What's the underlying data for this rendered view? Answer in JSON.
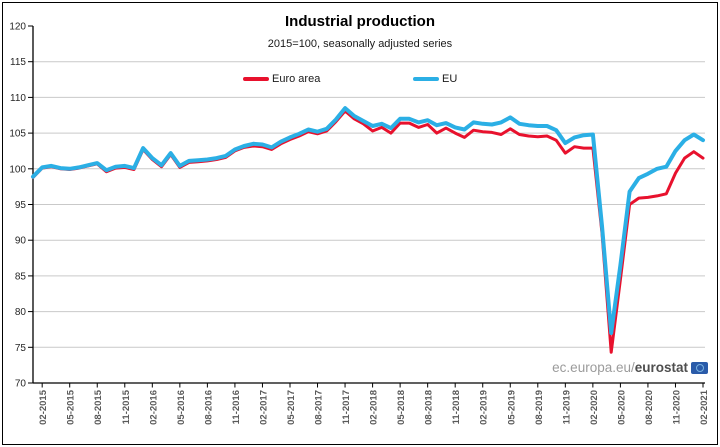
{
  "watermark": {
    "prefix": "ec.europa.eu/",
    "brand": "eurostat",
    "logo": "eu-flag-logo"
  },
  "chart_data": {
    "type": "line",
    "title": "Industrial production",
    "subtitle": "2015=100, seasonally adjusted series",
    "legend_position": "top-center",
    "grid": "horizontal",
    "ylim": [
      70,
      120
    ],
    "ytick_step": 5,
    "x_frequency": "monthly",
    "x_start": "01-2015",
    "x_end": "02-2021",
    "xtick_labels": [
      "02-2015",
      "05-2015",
      "08-2015",
      "11-2015",
      "02-2016",
      "05-2016",
      "08-2016",
      "11-2016",
      "02-2017",
      "05-2017",
      "08-2017",
      "11-2017",
      "02-2018",
      "05-2018",
      "08-2018",
      "11-2018",
      "02-2019",
      "05-2019",
      "08-2019",
      "11-2019",
      "02-2020",
      "05-2020",
      "08-2020",
      "11-2020",
      "02-2021"
    ],
    "axis_colors": {
      "grid": "#c9c9c9",
      "axis": "#000000",
      "xtick_text": "#595959",
      "ytick_text": "#262626"
    },
    "series": [
      {
        "name": "Euro area",
        "color": "#e8112d",
        "values": [
          98.8,
          100.1,
          100.3,
          100.0,
          99.9,
          100.1,
          100.4,
          100.7,
          99.6,
          100.1,
          100.2,
          99.9,
          102.7,
          101.3,
          100.3,
          102.0,
          100.2,
          100.9,
          101.0,
          101.1,
          101.3,
          101.6,
          102.5,
          103.0,
          103.2,
          103.1,
          102.7,
          103.5,
          104.1,
          104.6,
          105.2,
          104.9,
          105.3,
          106.6,
          108.1,
          107.0,
          106.3,
          105.3,
          105.8,
          105.0,
          106.4,
          106.4,
          105.8,
          106.2,
          105.0,
          105.7,
          105.0,
          104.4,
          105.4,
          105.2,
          105.1,
          104.8,
          105.6,
          104.8,
          104.6,
          104.5,
          104.6,
          104.0,
          102.2,
          103.1,
          102.9,
          102.9,
          91.0,
          74.3,
          84.5,
          95.0,
          95.9,
          96.0,
          96.2,
          96.5,
          99.4,
          101.5,
          102.4,
          101.5
        ]
      },
      {
        "name": "EU",
        "color": "#2bafe5",
        "values": [
          98.9,
          100.2,
          100.4,
          100.1,
          100.0,
          100.2,
          100.5,
          100.8,
          99.8,
          100.3,
          100.4,
          100.1,
          102.9,
          101.5,
          100.5,
          102.2,
          100.4,
          101.1,
          101.2,
          101.3,
          101.5,
          101.8,
          102.7,
          103.2,
          103.5,
          103.4,
          103.0,
          103.8,
          104.4,
          104.9,
          105.5,
          105.2,
          105.6,
          106.9,
          108.5,
          107.4,
          106.7,
          106.0,
          106.3,
          105.7,
          107.0,
          107.0,
          106.5,
          106.8,
          106.1,
          106.4,
          105.8,
          105.5,
          106.5,
          106.3,
          106.2,
          106.5,
          107.2,
          106.3,
          106.1,
          106.0,
          106.0,
          105.4,
          103.6,
          104.4,
          104.7,
          104.8,
          92.0,
          77.0,
          86.5,
          96.8,
          98.7,
          99.3,
          100.0,
          100.3,
          102.5,
          104.0,
          104.8,
          104.0
        ]
      }
    ]
  }
}
